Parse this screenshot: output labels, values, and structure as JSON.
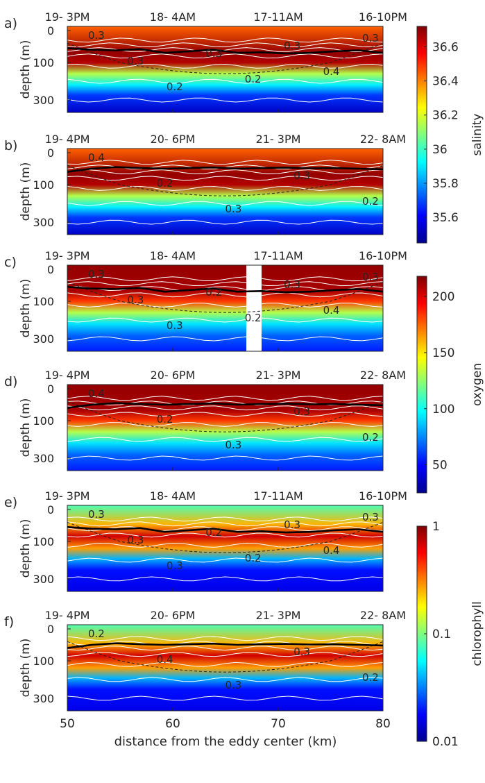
{
  "figure": {
    "xlabel": "distance from the eddy center (km)",
    "ylabel": "depth (m)",
    "x_ticks": [
      "50",
      "60",
      "70",
      "80"
    ],
    "y_ticks": [
      "0",
      "100",
      "300"
    ]
  },
  "chart_data": {
    "type": "heatmap",
    "x_range_km": [
      50,
      80
    ],
    "depth_range_m": [
      0,
      350
    ],
    "y_scale": "stretched (non-linear)",
    "x": [
      50,
      60,
      70,
      80
    ],
    "panels": [
      {
        "id": "a",
        "label": "a)",
        "variable": "salinity",
        "times": [
          "19- 3PM",
          "18- 4AM",
          "17-11AM",
          "16-10PM"
        ],
        "contour_labels": [
          "0.3",
          "0.3",
          "0.2",
          "0.3",
          "0.2",
          "0.3",
          "0.4",
          "0.3"
        ],
        "mixed_layer_depth_m": [
          55,
          60,
          62,
          58,
          70,
          65,
          60,
          70,
          68,
          72,
          70,
          65,
          62,
          70
        ]
      },
      {
        "id": "b",
        "label": "b)",
        "variable": "salinity",
        "times": [
          "19- 4PM",
          "20- 6PM",
          "21- 3PM",
          "22- 8AM"
        ],
        "contour_labels": [
          "0.4",
          "0.2",
          "0.3",
          "0.3",
          "0.2"
        ],
        "mixed_layer_depth_m": [
          60,
          50,
          45,
          48,
          50,
          48,
          46,
          50,
          48,
          47,
          49,
          48,
          50,
          52
        ]
      },
      {
        "id": "c",
        "label": "c)",
        "variable": "oxygen",
        "times": [
          "19- 3PM",
          "18- 4AM",
          "17-11AM",
          "16-10PM"
        ],
        "contour_labels": [
          "0.3",
          "0.3",
          "0.3",
          "0.2",
          "0.2",
          "0.3",
          "0.4",
          "0.3"
        ],
        "mixed_layer_depth_m": [
          55,
          60,
          62,
          58,
          70,
          65,
          60,
          70,
          68,
          72,
          70,
          65,
          62,
          70
        ]
      },
      {
        "id": "d",
        "label": "d)",
        "variable": "oxygen",
        "times": [
          "19- 4PM",
          "20- 6PM",
          "21- 3PM",
          "22- 8AM"
        ],
        "contour_labels": [
          "0.4",
          "0.2",
          "0.3",
          "0.3",
          "0.2"
        ],
        "mixed_layer_depth_m": [
          60,
          50,
          45,
          48,
          50,
          48,
          46,
          50,
          48,
          47,
          49,
          48,
          50,
          52
        ]
      },
      {
        "id": "e",
        "label": "e)",
        "variable": "chlorophyll",
        "times": [
          "19- 3PM",
          "18- 4AM",
          "17-11AM",
          "16-10PM"
        ],
        "contour_labels": [
          "0.3",
          "0.3",
          "0.3",
          "0.2",
          "0.2",
          "0.3",
          "0.4",
          "0.3"
        ],
        "mixed_layer_depth_m": [
          55,
          60,
          62,
          58,
          70,
          65,
          60,
          70,
          68,
          72,
          70,
          65,
          62,
          70
        ]
      },
      {
        "id": "f",
        "label": "f)",
        "variable": "chlorophyll",
        "times": [
          "19- 4PM",
          "20- 6PM",
          "21- 3PM",
          "22- 8AM"
        ],
        "contour_labels": [
          "0.2",
          "0.4",
          "0.3",
          "0.3",
          "0.2"
        ],
        "mixed_layer_depth_m": [
          60,
          50,
          45,
          48,
          50,
          48,
          46,
          50,
          48,
          47,
          49,
          48,
          50,
          52
        ]
      }
    ],
    "colorbars": [
      {
        "variable": "salinity",
        "label": "salinity",
        "scale": "linear",
        "range": [
          35.45,
          36.72
        ],
        "ticks": [
          "36.6",
          "36.4",
          "36.2",
          "36",
          "35.8",
          "35.6"
        ],
        "tick_values": [
          36.6,
          36.4,
          36.2,
          36.0,
          35.8,
          35.6
        ]
      },
      {
        "variable": "oxygen",
        "label": "oxygen",
        "scale": "linear",
        "range": [
          25,
          218
        ],
        "ticks": [
          "200",
          "150",
          "100",
          "50"
        ],
        "tick_values": [
          200,
          150,
          100,
          50
        ]
      },
      {
        "variable": "chlorophyll",
        "label": "chlorophyll",
        "scale": "log",
        "range": [
          0.01,
          1
        ],
        "ticks": [
          "1",
          "0.1",
          "0.01"
        ],
        "tick_values": [
          1,
          0.1,
          0.01
        ]
      }
    ],
    "colormap": "jet",
    "grid": false
  }
}
